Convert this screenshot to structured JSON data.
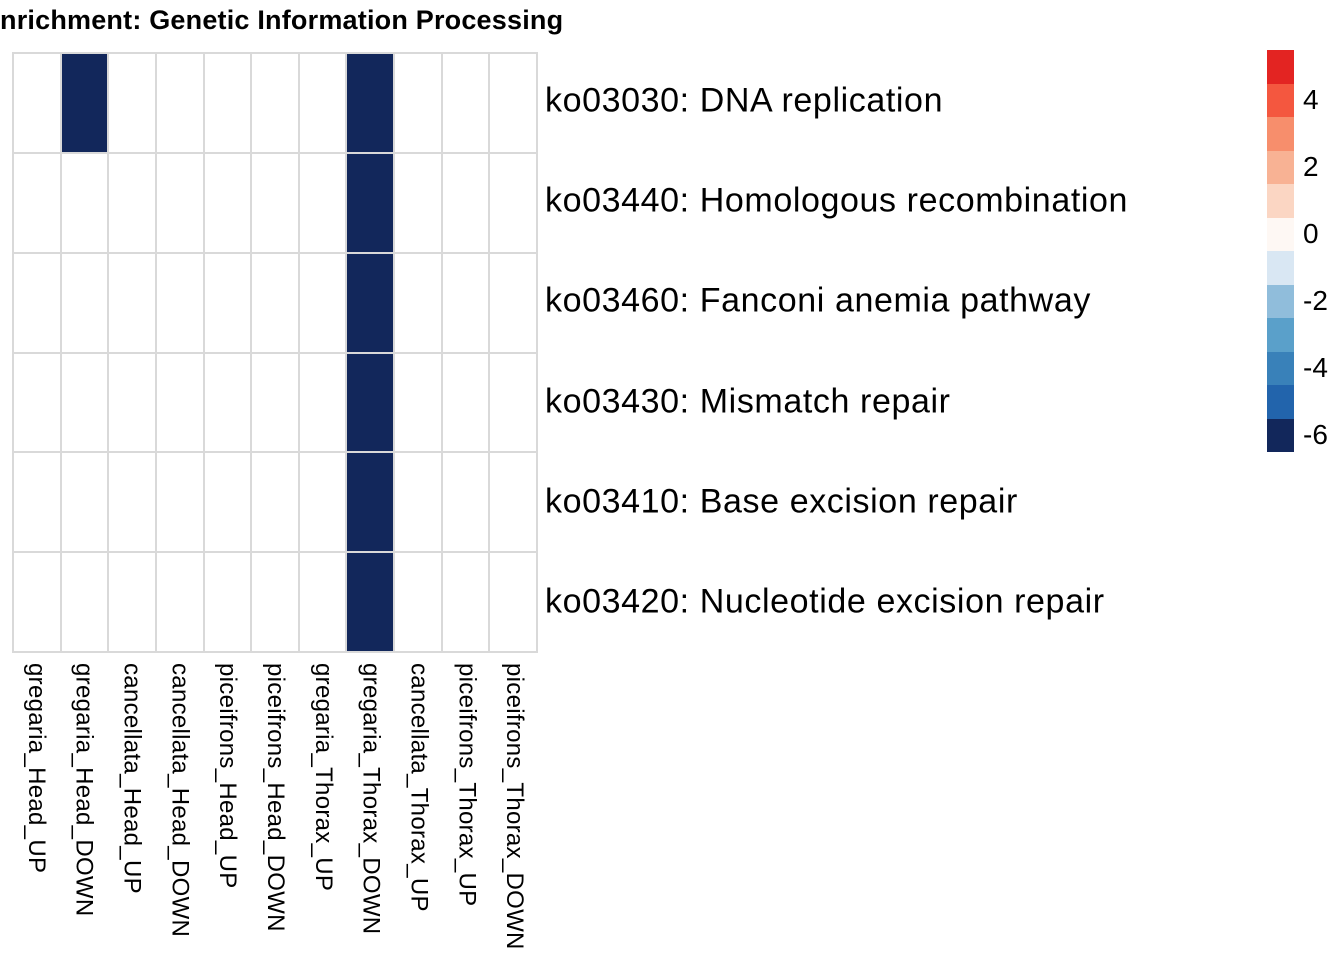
{
  "title": "nrichment: Genetic Information Processing",
  "chart_data": {
    "type": "heatmap",
    "title": "nrichment: Genetic Information Processing",
    "rows": [
      "ko03030: DNA replication",
      "ko03440: Homologous recombination",
      "ko03460: Fanconi anemia pathway",
      "ko03430: Mismatch repair",
      "ko03410: Base excision repair",
      "ko03420: Nucleotide excision repair"
    ],
    "columns": [
      "gregaria_Head_UP",
      "gregaria_Head_DOWN",
      "cancellata_Head_UP",
      "cancellata_Head_DOWN",
      "piceifrons_Head_UP",
      "piceifrons_Head_DOWN",
      "gregaria_Thorax_UP",
      "gregaria_Thorax_DOWN",
      "cancellata_Thorax_UP",
      "piceifrons_Thorax_UP",
      "piceifrons_Thorax_DOWN"
    ],
    "values": [
      [
        null,
        -6,
        null,
        null,
        null,
        null,
        null,
        -6,
        null,
        null,
        null
      ],
      [
        null,
        null,
        null,
        null,
        null,
        null,
        null,
        -6,
        null,
        null,
        null
      ],
      [
        null,
        null,
        null,
        null,
        null,
        null,
        null,
        -6,
        null,
        null,
        null
      ],
      [
        null,
        null,
        null,
        null,
        null,
        null,
        null,
        -6,
        null,
        null,
        null
      ],
      [
        null,
        null,
        null,
        null,
        null,
        null,
        null,
        -6,
        null,
        null,
        null
      ],
      [
        null,
        null,
        null,
        null,
        null,
        null,
        null,
        -6,
        null,
        null,
        null
      ]
    ],
    "empty_color": "#ffffff",
    "grid_line_color": "#d9d9d9",
    "legend_position": "right",
    "colorbar": {
      "bins": [
        {
          "value": 5,
          "color": "#e32422"
        },
        {
          "value": 4,
          "color": "#f4573f"
        },
        {
          "value": 3,
          "color": "#f78e6c"
        },
        {
          "value": 2,
          "color": "#f8b294"
        },
        {
          "value": 1,
          "color": "#fbd6c3"
        },
        {
          "value": 0,
          "color": "#fef8f4"
        },
        {
          "value": -1,
          "color": "#d9e7f3"
        },
        {
          "value": -2,
          "color": "#90bddb"
        },
        {
          "value": -3,
          "color": "#5aa0ca"
        },
        {
          "value": -4,
          "color": "#3981b9"
        },
        {
          "value": -5,
          "color": "#2264ac"
        },
        {
          "value": -6,
          "color": "#12275b"
        }
      ],
      "tick_labels": [
        "4",
        "2",
        "0",
        "-2",
        "-4",
        "-6"
      ]
    }
  }
}
